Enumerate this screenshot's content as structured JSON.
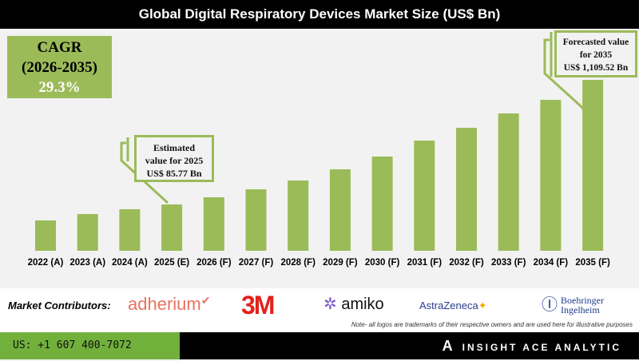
{
  "chart_data": {
    "type": "bar",
    "title": "Global Digital Respiratory Devices Market Size (US$ Bn)",
    "categories": [
      "2022 (A)",
      "2023 (A)",
      "2024 (A)",
      "2025 (E)",
      "2026 (F)",
      "2027 (F)",
      "2028 (F)",
      "2029 (F)",
      "2030 (F)",
      "2031 (F)",
      "2032 (F)",
      "2033 (F)",
      "2034 (F)",
      "2035 (F)"
    ],
    "values": [
      null,
      null,
      null,
      85.77,
      null,
      null,
      null,
      null,
      null,
      null,
      null,
      null,
      null,
      1109.52
    ],
    "bar_color": "#9bbb59",
    "grid": false,
    "annotations": [
      {
        "lines": [
          "Estimated",
          "value for 2025",
          "US$ 85.77 Bn"
        ]
      },
      {
        "lines": [
          "Forecasted value",
          "for 2035",
          "US$ 1,109.52 Bn"
        ]
      }
    ]
  },
  "cagr": {
    "label": "CAGR",
    "period": "(2026-2035)",
    "value": "29.3%"
  },
  "contributors": {
    "label": "Market Contributors:",
    "logos": [
      "adherium",
      "3M",
      "amiko",
      "AstraZeneca",
      "Boehringer",
      "Ingelheim"
    ],
    "note": "Note- all logos are trademarks of their respective owners and are used here for illustrative purposes"
  },
  "footer": {
    "phone": "US: +1 607 400-7072",
    "brand": "INSIGHT ACE ANALYTIC"
  }
}
